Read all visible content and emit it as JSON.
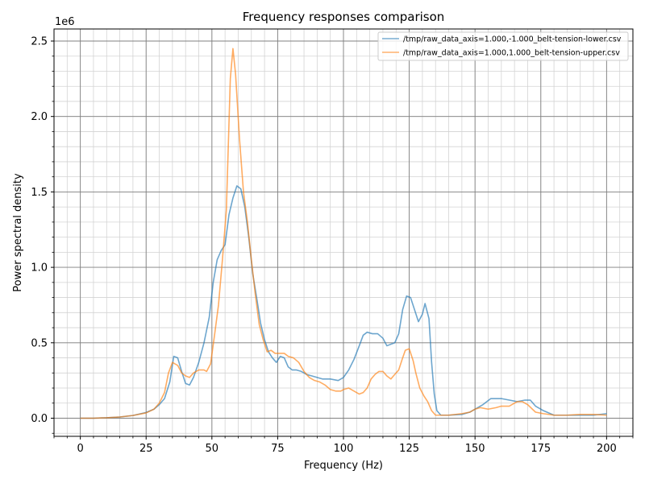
{
  "chart_data": {
    "type": "line",
    "title": "Frequency responses comparison",
    "xlabel": "Frequency (Hz)",
    "ylabel": "Power spectral density",
    "y_offset_label": "1e6",
    "xlim": [
      -10,
      210
    ],
    "ylim": [
      -0.12,
      2.58
    ],
    "x_ticks": [
      0,
      25,
      50,
      75,
      100,
      125,
      150,
      175,
      200
    ],
    "x_tick_labels": [
      "0",
      "25",
      "50",
      "75",
      "100",
      "125",
      "150",
      "175",
      "200"
    ],
    "y_ticks": [
      0.0,
      0.5,
      1.0,
      1.5,
      2.0,
      2.5
    ],
    "y_tick_labels": [
      "0.0",
      "0.5",
      "1.0",
      "1.5",
      "2.0",
      "2.5"
    ],
    "grid": "major and minor",
    "legend_position": "top-right",
    "series": [
      {
        "name": "/tmp/raw_data_axis=1.000,-1.000_belt-tension-lower.csv",
        "color": "#1f77b4",
        "points": [
          [
            0,
            0.0
          ],
          [
            5,
            0.0
          ],
          [
            10,
            0.003
          ],
          [
            15,
            0.008
          ],
          [
            20,
            0.018
          ],
          [
            25,
            0.038
          ],
          [
            28,
            0.06
          ],
          [
            30,
            0.09
          ],
          [
            32,
            0.13
          ],
          [
            34,
            0.24
          ],
          [
            35.5,
            0.41
          ],
          [
            37,
            0.4
          ],
          [
            38.5,
            0.31
          ],
          [
            40,
            0.23
          ],
          [
            41.5,
            0.22
          ],
          [
            43,
            0.27
          ],
          [
            45,
            0.37
          ],
          [
            47,
            0.5
          ],
          [
            49,
            0.67
          ],
          [
            50.5,
            0.9
          ],
          [
            52,
            1.05
          ],
          [
            53.5,
            1.11
          ],
          [
            55,
            1.15
          ],
          [
            56.5,
            1.35
          ],
          [
            58,
            1.46
          ],
          [
            59.5,
            1.54
          ],
          [
            61,
            1.52
          ],
          [
            62.5,
            1.4
          ],
          [
            64,
            1.2
          ],
          [
            65.5,
            0.96
          ],
          [
            67,
            0.8
          ],
          [
            68.5,
            0.63
          ],
          [
            70,
            0.52
          ],
          [
            71.5,
            0.44
          ],
          [
            73,
            0.4
          ],
          [
            74.5,
            0.37
          ],
          [
            76,
            0.41
          ],
          [
            77.5,
            0.4
          ],
          [
            79,
            0.34
          ],
          [
            80.5,
            0.32
          ],
          [
            82,
            0.32
          ],
          [
            84,
            0.31
          ],
          [
            86,
            0.29
          ],
          [
            88,
            0.28
          ],
          [
            90,
            0.27
          ],
          [
            92,
            0.26
          ],
          [
            95,
            0.26
          ],
          [
            98,
            0.25
          ],
          [
            100,
            0.27
          ],
          [
            102,
            0.32
          ],
          [
            104,
            0.39
          ],
          [
            106,
            0.48
          ],
          [
            107.5,
            0.55
          ],
          [
            109,
            0.57
          ],
          [
            111,
            0.56
          ],
          [
            113,
            0.56
          ],
          [
            115,
            0.53
          ],
          [
            116.5,
            0.48
          ],
          [
            118,
            0.49
          ],
          [
            119.5,
            0.5
          ],
          [
            121,
            0.56
          ],
          [
            122.5,
            0.72
          ],
          [
            124,
            0.81
          ],
          [
            125.5,
            0.8
          ],
          [
            127,
            0.72
          ],
          [
            128.5,
            0.64
          ],
          [
            130,
            0.69
          ],
          [
            131,
            0.76
          ],
          [
            132.5,
            0.66
          ],
          [
            133.5,
            0.37
          ],
          [
            134.5,
            0.16
          ],
          [
            135.5,
            0.05
          ],
          [
            137,
            0.02
          ],
          [
            140,
            0.02
          ],
          [
            145,
            0.025
          ],
          [
            148,
            0.04
          ],
          [
            150,
            0.06
          ],
          [
            153,
            0.09
          ],
          [
            156,
            0.13
          ],
          [
            160,
            0.13
          ],
          [
            163,
            0.12
          ],
          [
            166,
            0.11
          ],
          [
            169,
            0.12
          ],
          [
            171,
            0.12
          ],
          [
            173,
            0.08
          ],
          [
            176,
            0.05
          ],
          [
            180,
            0.02
          ],
          [
            185,
            0.02
          ],
          [
            190,
            0.02
          ],
          [
            195,
            0.02
          ],
          [
            200,
            0.03
          ]
        ]
      },
      {
        "name": "/tmp/raw_data_axis=1.000,1.000_belt-tension-upper.csv",
        "color": "#ff7f0e",
        "points": [
          [
            0,
            0.0
          ],
          [
            5,
            0.0
          ],
          [
            10,
            0.003
          ],
          [
            15,
            0.008
          ],
          [
            20,
            0.018
          ],
          [
            25,
            0.035
          ],
          [
            28,
            0.06
          ],
          [
            30,
            0.1
          ],
          [
            32,
            0.17
          ],
          [
            33.5,
            0.3
          ],
          [
            35,
            0.37
          ],
          [
            37,
            0.35
          ],
          [
            38.5,
            0.3
          ],
          [
            40,
            0.28
          ],
          [
            41.5,
            0.27
          ],
          [
            43,
            0.3
          ],
          [
            45,
            0.32
          ],
          [
            47,
            0.32
          ],
          [
            48,
            0.31
          ],
          [
            49.5,
            0.36
          ],
          [
            51,
            0.55
          ],
          [
            52.5,
            0.75
          ],
          [
            54,
            1.05
          ],
          [
            55.5,
            1.38
          ],
          [
            57,
            2.25
          ],
          [
            58,
            2.45
          ],
          [
            59,
            2.28
          ],
          [
            60.5,
            1.85
          ],
          [
            62,
            1.5
          ],
          [
            63.5,
            1.3
          ],
          [
            65,
            1.05
          ],
          [
            66.5,
            0.82
          ],
          [
            68,
            0.62
          ],
          [
            69.5,
            0.52
          ],
          [
            71,
            0.44
          ],
          [
            72.5,
            0.45
          ],
          [
            74,
            0.43
          ],
          [
            76,
            0.43
          ],
          [
            77.5,
            0.43
          ],
          [
            79,
            0.41
          ],
          [
            81,
            0.4
          ],
          [
            83,
            0.37
          ],
          [
            85,
            0.31
          ],
          [
            87,
            0.27
          ],
          [
            89,
            0.25
          ],
          [
            91,
            0.24
          ],
          [
            93,
            0.22
          ],
          [
            95,
            0.19
          ],
          [
            97,
            0.18
          ],
          [
            99,
            0.18
          ],
          [
            100,
            0.19
          ],
          [
            102,
            0.2
          ],
          [
            104,
            0.18
          ],
          [
            106,
            0.16
          ],
          [
            107.5,
            0.17
          ],
          [
            109,
            0.2
          ],
          [
            110.5,
            0.26
          ],
          [
            112,
            0.29
          ],
          [
            113.5,
            0.31
          ],
          [
            115,
            0.31
          ],
          [
            116.5,
            0.28
          ],
          [
            118,
            0.26
          ],
          [
            119.5,
            0.29
          ],
          [
            121,
            0.32
          ],
          [
            122.5,
            0.4
          ],
          [
            123.5,
            0.45
          ],
          [
            125,
            0.46
          ],
          [
            126.5,
            0.38
          ],
          [
            127.5,
            0.3
          ],
          [
            129,
            0.2
          ],
          [
            130.5,
            0.15
          ],
          [
            132,
            0.11
          ],
          [
            133.5,
            0.05
          ],
          [
            135,
            0.02
          ],
          [
            137,
            0.02
          ],
          [
            140,
            0.02
          ],
          [
            145,
            0.03
          ],
          [
            148,
            0.04
          ],
          [
            150,
            0.06
          ],
          [
            152,
            0.07
          ],
          [
            155,
            0.06
          ],
          [
            158,
            0.07
          ],
          [
            160,
            0.08
          ],
          [
            163,
            0.08
          ],
          [
            166,
            0.11
          ],
          [
            168,
            0.11
          ],
          [
            170,
            0.09
          ],
          [
            173,
            0.04
          ],
          [
            176,
            0.03
          ],
          [
            180,
            0.02
          ],
          [
            185,
            0.02
          ],
          [
            190,
            0.025
          ],
          [
            195,
            0.025
          ],
          [
            200,
            0.02
          ]
        ]
      }
    ]
  }
}
